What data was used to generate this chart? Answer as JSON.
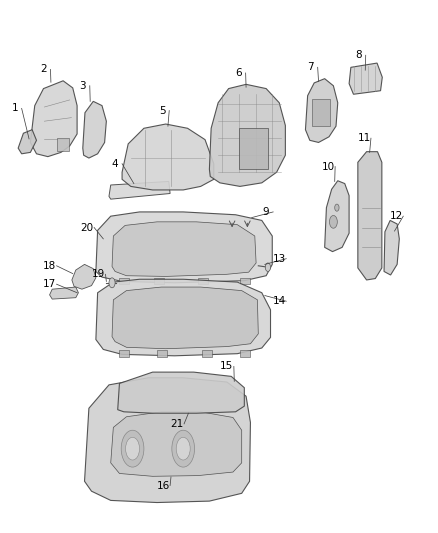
{
  "bg_color": "#ffffff",
  "font_size": 7.5,
  "line_color": "#444444",
  "text_color": "#000000",
  "callouts": [
    [
      1,
      0.065,
      0.775,
      0.032,
      0.818
    ],
    [
      2,
      0.115,
      0.855,
      0.098,
      0.873
    ],
    [
      3,
      0.205,
      0.828,
      0.188,
      0.85
    ],
    [
      4,
      0.305,
      0.712,
      0.262,
      0.74
    ],
    [
      5,
      0.383,
      0.793,
      0.37,
      0.815
    ],
    [
      6,
      0.562,
      0.848,
      0.545,
      0.868
    ],
    [
      7,
      0.728,
      0.856,
      0.71,
      0.876
    ],
    [
      8,
      0.835,
      0.872,
      0.82,
      0.893
    ],
    [
      9,
      0.575,
      0.664,
      0.608,
      0.672
    ],
    [
      10,
      0.765,
      0.715,
      0.75,
      0.736
    ],
    [
      11,
      0.845,
      0.756,
      0.832,
      0.776
    ],
    [
      12,
      0.902,
      0.645,
      0.906,
      0.666
    ],
    [
      13,
      0.605,
      0.598,
      0.638,
      0.606
    ],
    [
      14,
      0.605,
      0.554,
      0.638,
      0.546
    ],
    [
      15,
      0.535,
      0.433,
      0.518,
      0.454
    ],
    [
      16,
      0.39,
      0.298,
      0.372,
      0.286
    ],
    [
      17,
      0.175,
      0.558,
      0.112,
      0.57
    ],
    [
      18,
      0.165,
      0.585,
      0.112,
      0.596
    ],
    [
      19,
      0.242,
      0.574,
      0.224,
      0.584
    ],
    [
      20,
      0.235,
      0.634,
      0.198,
      0.65
    ],
    [
      21,
      0.43,
      0.388,
      0.404,
      0.373
    ]
  ]
}
